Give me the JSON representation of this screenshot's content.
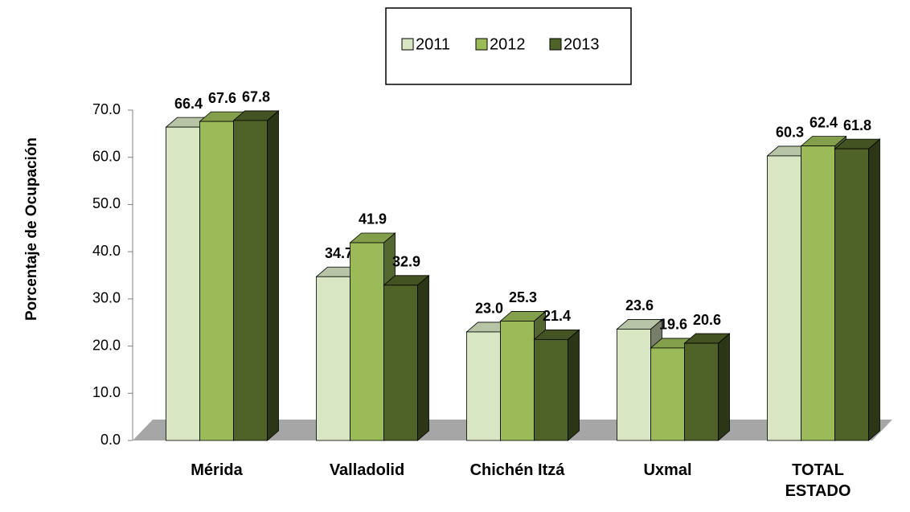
{
  "chart_data": {
    "type": "bar3d",
    "y_axis_label": "Porcentaje de Ocupación",
    "categories": [
      "Mérida",
      "Valladolid",
      "Chichén Itzá",
      "Uxmal",
      "TOTAL ESTADO"
    ],
    "series": [
      {
        "name": "2011",
        "color": "#d8e6c3",
        "values": [
          66.4,
          34.7,
          23.0,
          23.6,
          60.3
        ],
        "value_labels": [
          "66.4",
          "34.7",
          "23.0",
          "23.6",
          "60.3"
        ]
      },
      {
        "name": "2012",
        "color": "#9bbb59",
        "values": [
          67.6,
          41.9,
          25.3,
          19.6,
          62.4
        ],
        "value_labels": [
          "67.6",
          "41.9",
          "25.3",
          "19.6",
          "62.4"
        ]
      },
      {
        "name": "2013",
        "color": "#4f6228",
        "values": [
          67.8,
          32.9,
          21.4,
          20.6,
          61.8
        ],
        "value_labels": [
          "67.8",
          "32.9",
          "21.4",
          "20.6",
          "61.8"
        ]
      }
    ],
    "ylim": [
      0,
      70
    ],
    "yticks": [
      {
        "value": 0,
        "label": "0.0"
      },
      {
        "value": 10,
        "label": "10.0"
      },
      {
        "value": 20,
        "label": "20.0"
      },
      {
        "value": 30,
        "label": "30.0"
      },
      {
        "value": 40,
        "label": "40.0"
      },
      {
        "value": 50,
        "label": "50.0"
      },
      {
        "value": 60,
        "label": "60.0"
      },
      {
        "value": 70,
        "label": "70.0"
      }
    ],
    "legend": "top"
  }
}
